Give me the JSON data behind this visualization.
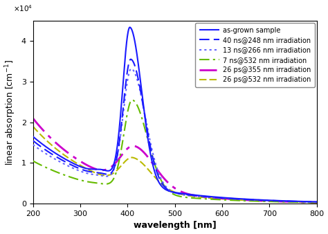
{
  "title": "",
  "xlabel": "wavelength [nm]",
  "ylabel": "linear absorption [cm$^{-1}$]",
  "xlim": [
    200,
    800
  ],
  "ylim": [
    0,
    45000.0
  ],
  "series": [
    {
      "label": "as-grown sample",
      "color": "#1a1aff",
      "linewidth": 1.5,
      "zorder": 6
    },
    {
      "label": "40 ns@248 nm irradiation",
      "color": "#1a1aff",
      "linewidth": 1.5,
      "zorder": 5
    },
    {
      "label": "13 ns@266 nm irradiation",
      "color": "#6666ff",
      "linewidth": 1.5,
      "zorder": 4
    },
    {
      "label": "7 ns@532 nm irradiation",
      "color": "#66bb00",
      "linewidth": 1.5,
      "zorder": 3
    },
    {
      "label": "26 ps@355 nm irradiation",
      "color": "#cc00cc",
      "linewidth": 2.0,
      "zorder": 2
    },
    {
      "label": "26 ps@532 nm irradiation",
      "color": "#bbbb00",
      "linewidth": 1.5,
      "zorder": 1
    }
  ],
  "background_color": "#f5f5f5",
  "legend_fontsize": 7.0,
  "axis_fontsize": 9,
  "tick_fontsize": 8
}
